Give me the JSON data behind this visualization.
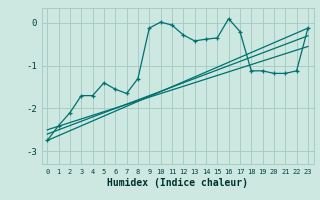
{
  "xlabel": "Humidex (Indice chaleur)",
  "bg_color": "#cce8e0",
  "grid_color": "#a8ccc4",
  "line_color": "#007070",
  "xlim": [
    -0.5,
    23.5
  ],
  "ylim": [
    -3.3,
    0.35
  ],
  "x_ticks": [
    0,
    1,
    2,
    3,
    4,
    5,
    6,
    7,
    8,
    9,
    10,
    11,
    12,
    13,
    14,
    15,
    16,
    17,
    18,
    19,
    20,
    21,
    22,
    23
  ],
  "y_ticks": [
    0,
    -1,
    -2,
    -3
  ],
  "main_x": [
    0,
    1,
    2,
    3,
    4,
    5,
    6,
    7,
    8,
    9,
    10,
    11,
    12,
    13,
    14,
    15,
    16,
    17,
    18,
    19,
    20,
    21,
    22,
    23
  ],
  "main_y": [
    -2.75,
    -2.4,
    -2.1,
    -1.7,
    -1.7,
    -1.4,
    -1.55,
    -1.65,
    -1.3,
    -0.12,
    0.02,
    -0.05,
    -0.28,
    -0.42,
    -0.38,
    -0.35,
    0.1,
    -0.2,
    -1.12,
    -1.12,
    -1.18,
    -1.18,
    -1.12,
    -0.12
  ],
  "line1_x": [
    0,
    23
  ],
  "line1_y": [
    -2.75,
    -0.12
  ],
  "line2_x": [
    0,
    23
  ],
  "line2_y": [
    -2.6,
    -0.3
  ],
  "line3_x": [
    0,
    23
  ],
  "line3_y": [
    -2.5,
    -0.55
  ]
}
